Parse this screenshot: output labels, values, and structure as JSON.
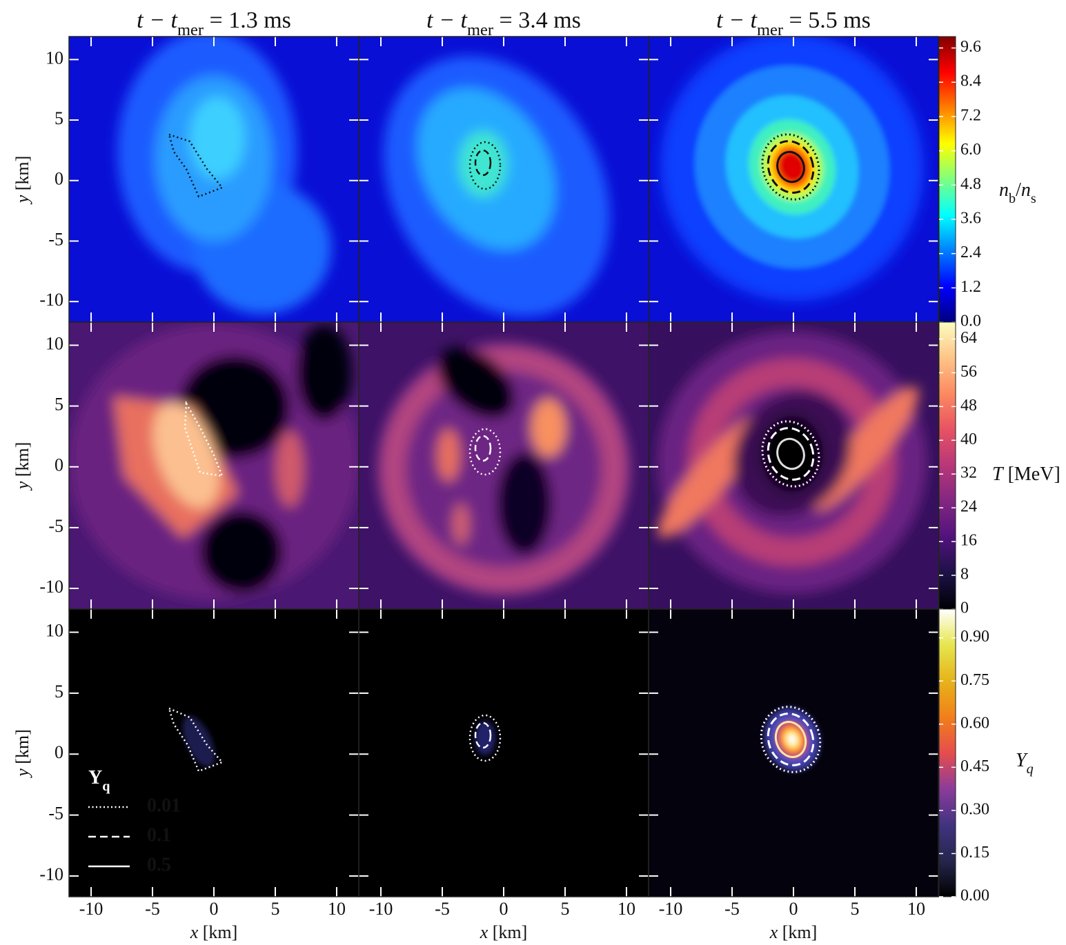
{
  "columns": [
    {
      "title": [
        {
          "text": "t − t",
          "italic": true
        },
        {
          "text": "mer",
          "sub": true
        },
        {
          "text": " = 1.3 ms"
        }
      ],
      "xlabel": [
        {
          "text": "x",
          "italic": true
        },
        {
          "text": " [km]"
        }
      ]
    },
    {
      "title": [
        {
          "text": "t − t",
          "italic": true
        },
        {
          "text": "mer",
          "sub": true
        },
        {
          "text": " = 3.4 ms"
        }
      ],
      "xlabel": [
        {
          "text": "x",
          "italic": true
        },
        {
          "text": " [km]"
        }
      ]
    },
    {
      "title": [
        {
          "text": "t − t",
          "italic": true
        },
        {
          "text": "mer",
          "sub": true
        },
        {
          "text": " = 5.5 ms"
        }
      ],
      "xlabel": [
        {
          "text": "x",
          "italic": true
        },
        {
          "text": " [km]"
        }
      ]
    }
  ],
  "rows": [
    {
      "ylabel": [
        {
          "text": "y",
          "italic": true
        },
        {
          "text": " [km]"
        }
      ],
      "colorbar": {
        "label": [
          {
            "text": "n",
            "italic": true
          },
          {
            "text": "b",
            "sub": true
          },
          {
            "text": "/"
          },
          {
            "text": "n",
            "italic": true
          },
          {
            "text": "s",
            "sub": true
          }
        ],
        "lim": [
          0,
          10.0
        ],
        "ticks": [
          {
            "value": 0,
            "label": "0.0"
          },
          1.2,
          2.4,
          3.6,
          4.8,
          {
            "value": 6,
            "label": "6.0"
          },
          7.2,
          8.4,
          9.6
        ],
        "colors": [
          "#00007f",
          "#0000ff",
          "#007fff",
          "#00ffff",
          "#7fff7f",
          "#ffff00",
          "#ff7f00",
          "#ff0000",
          "#7f0000"
        ]
      }
    },
    {
      "ylabel": [
        {
          "text": "y",
          "italic": true
        },
        {
          "text": " [km]"
        }
      ],
      "colorbar": {
        "label": [
          {
            "text": "T",
            "italic": true
          },
          {
            "text": " [MeV]"
          }
        ],
        "lim": [
          0,
          68
        ],
        "ticks": [
          0,
          8,
          16,
          24,
          32,
          40,
          48,
          56,
          64
        ],
        "colors": [
          "#000004",
          "#1d1147",
          "#51127c",
          "#822681",
          "#b73779",
          "#e75263",
          "#fc8961",
          "#fec488",
          "#fcfdbf"
        ]
      }
    },
    {
      "ylabel": [
        {
          "text": "y",
          "italic": true
        },
        {
          "text": " [km]"
        }
      ],
      "colorbar": {
        "label": [
          {
            "text": "Y",
            "italic": true
          },
          {
            "text": "q",
            "sub": true,
            "italic": true
          }
        ],
        "lim": [
          0,
          1.0
        ],
        "ticks": [
          {
            "value": 0,
            "label": "0.00"
          },
          0.15,
          {
            "value": 0.3,
            "label": "0.30"
          },
          0.45,
          {
            "value": 0.6,
            "label": "0.60"
          },
          0.75,
          {
            "value": 0.9,
            "label": "0.90"
          }
        ],
        "colors": [
          "#000000",
          "#26264d",
          "#403380",
          "#8c3c9a",
          "#e64d4d",
          "#f27f1a",
          "#e6b31a",
          "#e6e64d",
          "#ffffff"
        ]
      }
    }
  ],
  "axes": {
    "xlim": [
      -11.8,
      11.8
    ],
    "ylim": [
      -11.7,
      11.9
    ],
    "xticks": [
      -10,
      -5,
      0,
      5,
      10
    ],
    "yticks": [
      -10,
      -5,
      0,
      5,
      10
    ]
  },
  "legend": {
    "title": [
      {
        "text": "Y",
        "bold": true
      },
      {
        "text": "q",
        "sub": true,
        "bold": true
      }
    ],
    "entries": [
      {
        "label": "0.01",
        "dash": "dotted"
      },
      {
        "label": "0.1",
        "dash": "dashed"
      },
      {
        "label": "0.5",
        "dash": "solid"
      }
    ]
  }
}
